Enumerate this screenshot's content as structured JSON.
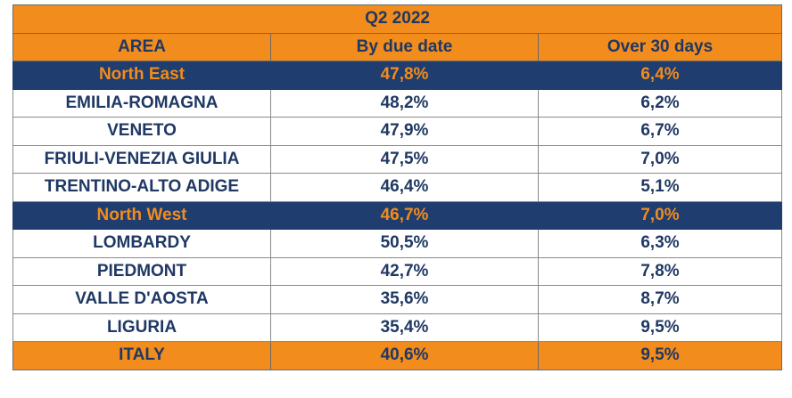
{
  "title": "Q2 2022",
  "headers": [
    "AREA",
    "By due date",
    "Over 30 days"
  ],
  "rows": [
    {
      "area": "North East",
      "due": "47,8%",
      "over30": "6,4%",
      "style": "navy"
    },
    {
      "area": "EMILIA-ROMAGNA",
      "due": "48,2%",
      "over30": "6,2%",
      "style": "white"
    },
    {
      "area": "VENETO",
      "due": "47,9%",
      "over30": "6,7%",
      "style": "white"
    },
    {
      "area": "FRIULI-VENEZIA GIULIA",
      "due": "47,5%",
      "over30": "7,0%",
      "style": "white"
    },
    {
      "area": "TRENTINO-ALTO ADIGE",
      "due": "46,4%",
      "over30": "5,1%",
      "style": "white"
    },
    {
      "area": "North West",
      "due": "46,7%",
      "over30": "7,0%",
      "style": "navy"
    },
    {
      "area": "LOMBARDY",
      "due": "50,5%",
      "over30": "6,3%",
      "style": "white"
    },
    {
      "area": "PIEDMONT",
      "due": "42,7%",
      "over30": "7,8%",
      "style": "white"
    },
    {
      "area": "VALLE D'AOSTA",
      "due": "35,6%",
      "over30": "8,7%",
      "style": "white"
    },
    {
      "area": "LIGURIA",
      "due": "35,4%",
      "over30": "9,5%",
      "style": "white"
    },
    {
      "area": "ITALY",
      "due": "40,6%",
      "over30": "9,5%",
      "style": "orange"
    }
  ],
  "colors": {
    "orange": "#f28c1c",
    "navy": "#1f3d6e",
    "text_dark": "#1f3864"
  }
}
